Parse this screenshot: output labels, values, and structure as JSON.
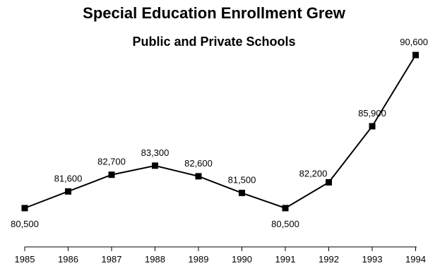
{
  "chart_data": {
    "type": "line",
    "title": "Special Education Enrollment Grew",
    "subtitle": "Public and Private Schools",
    "xlabel": "",
    "ylabel": "",
    "categories": [
      "1985",
      "1986",
      "1987",
      "1988",
      "1989",
      "1990",
      "1991",
      "1992",
      "1993",
      "1994"
    ],
    "series": [
      {
        "values": [
          80500,
          81600,
          82700,
          83300,
          82600,
          81500,
          80500,
          82200,
          85900,
          90600
        ],
        "labels": [
          "80,500",
          "81,600",
          "82,700",
          "83,300",
          "82,600",
          "81,500",
          "80,500",
          "82,200",
          "85,900",
          "90,600"
        ],
        "label_positions": [
          "below",
          "above",
          "above",
          "above",
          "above",
          "above",
          "below",
          "above-left",
          "above",
          "above"
        ]
      }
    ],
    "marker": "square",
    "grid": false,
    "legend": "none",
    "colors": {
      "line": "#000000",
      "marker": "#000000"
    }
  }
}
